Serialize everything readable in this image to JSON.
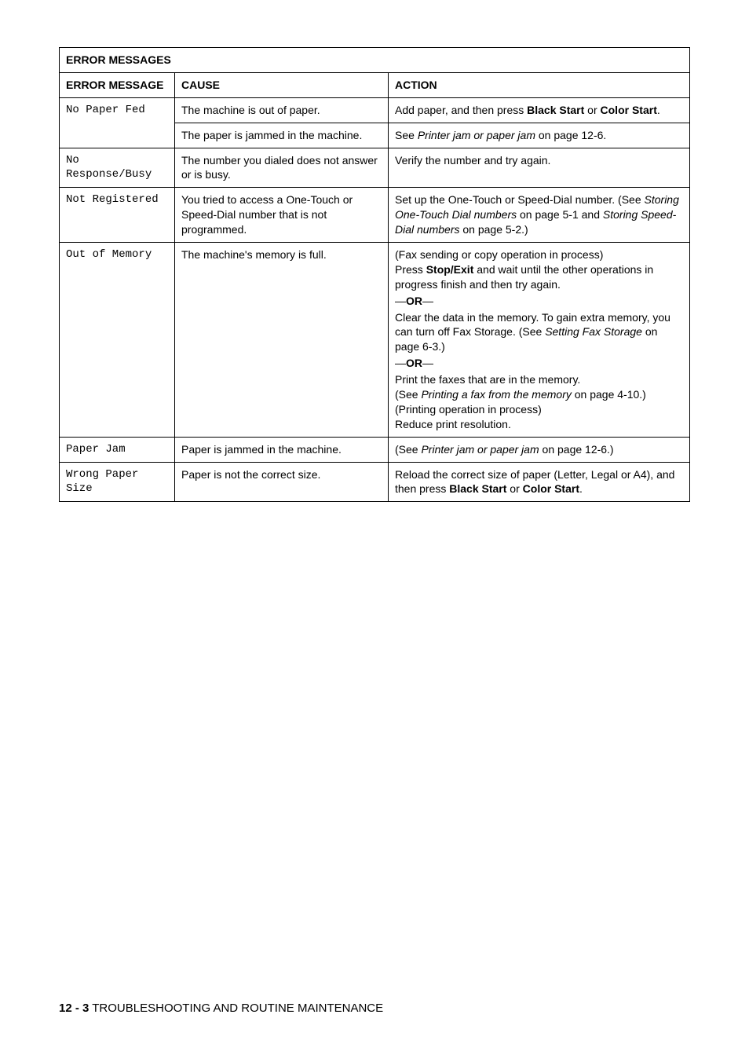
{
  "table": {
    "title": "ERROR MESSAGES",
    "headers": {
      "c1": "ERROR MESSAGE",
      "c2": "CAUSE",
      "c3": "ACTION"
    },
    "rows": {
      "r1": {
        "msg": "No Paper Fed",
        "cause1": "The machine is out of paper.",
        "action1a": "Add paper, and then press ",
        "action1b": "Black Start",
        "action1c": " or ",
        "action1d": "Color Start",
        "action1e": ".",
        "cause2": "The paper is jammed in the machine.",
        "action2a": "See ",
        "action2b": "Printer jam or paper jam",
        "action2c": " on page 12-6."
      },
      "r2": {
        "msg": "No Response/Busy",
        "cause": "The number you dialed does not answer or is busy.",
        "action": "Verify the number and try again."
      },
      "r3": {
        "msg": "Not Registered",
        "cause": "You tried to access a One-Touch or Speed-Dial number that is not programmed.",
        "action_a": "Set up the One-Touch or Speed-Dial number. (See ",
        "action_b": "Storing One-Touch Dial numbers",
        "action_c": " on page 5-1 and ",
        "action_d": "Storing Speed-Dial numbers",
        "action_e": " on page 5-2.)"
      },
      "r4": {
        "msg": "Out of Memory",
        "cause": "The machine's memory is full.",
        "p1a": "(Fax sending or copy operation in process)",
        "p1b": "Press ",
        "p1c": "Stop/Exit",
        "p1d": " and wait until the other operations in progress finish and then try again.",
        "or": "—",
        "or_b": "OR",
        "or_c": "—",
        "p2a": "Clear the data in the memory. To gain extra memory, you can turn off Fax Storage. (See ",
        "p2b": "Setting Fax Storage",
        "p2c": " on page 6-3.)",
        "p3a": "Print the faxes that are in the memory.",
        "p3b": "(See ",
        "p3c": "Printing a fax from the memory",
        "p3d": " on page 4-10.)",
        "p4": "(Printing operation in process)",
        "p5": "Reduce print resolution."
      },
      "r5": {
        "msg": "Paper Jam",
        "cause": "Paper is jammed in the machine.",
        "action_a": "(See ",
        "action_b": "Printer jam or paper jam",
        "action_c": " on page 12-6.)"
      },
      "r6": {
        "msg": "Wrong Paper Size",
        "cause": "Paper is not the correct size.",
        "action_a": "Reload the correct size of paper (Letter, Legal or A4), and then press ",
        "action_b": "Black Start",
        "action_c": " or ",
        "action_d": "Color Start",
        "action_e": "."
      }
    }
  },
  "footer": {
    "page": "12 - 3",
    "sep": "   ",
    "title": "TROUBLESHOOTING AND ROUTINE MAINTENANCE"
  }
}
